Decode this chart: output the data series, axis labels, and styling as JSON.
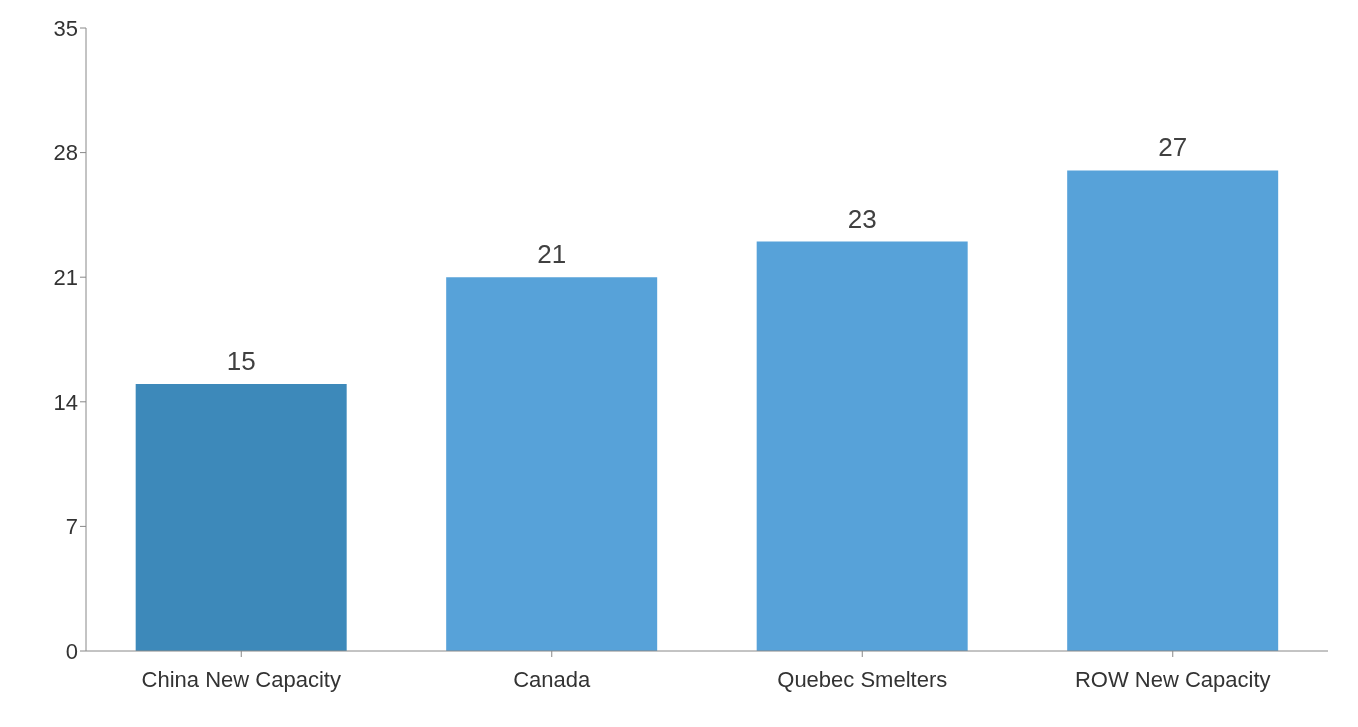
{
  "chart_data": {
    "type": "bar",
    "categories": [
      "China New Capacity",
      "Canada",
      "Quebec Smelters",
      "ROW New Capacity"
    ],
    "values": [
      15,
      21,
      23,
      27
    ],
    "colors": [
      "#3d89ba",
      "#57a2d9",
      "#57a2d9",
      "#57a2d9"
    ],
    "ylim": [
      0,
      35
    ],
    "yticks": [
      0,
      7,
      14,
      21,
      28,
      35
    ],
    "data_labels": true,
    "grid": false
  }
}
